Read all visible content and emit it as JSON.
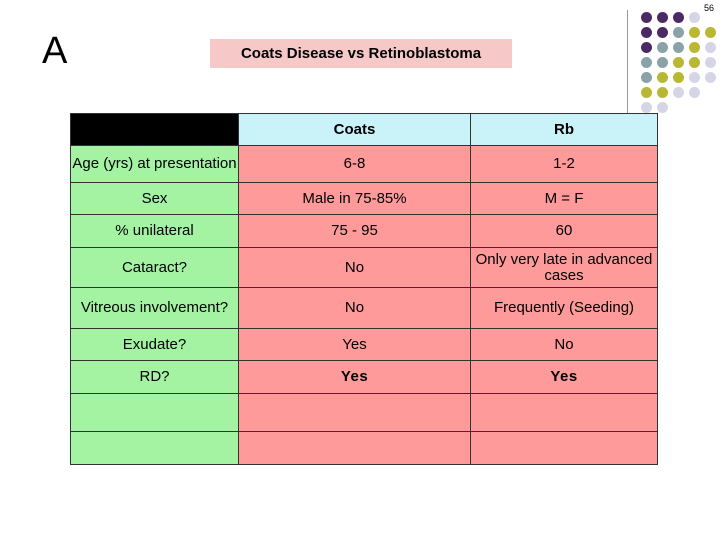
{
  "page_number": "56",
  "section_letter": "A",
  "title": "Coats Disease vs Retinoblastoma",
  "colors": {
    "title_bg": "#f6c8c8",
    "header_bg": "#c9f3f8",
    "label_bg": "#a3f3a3",
    "value_bg": "#ff9a9a",
    "dot_purple": "#4a2a66",
    "dot_olive": "#b8b832",
    "dot_grey": "#8aa3a8",
    "dot_lavender": "#d5d5e6"
  },
  "table": {
    "headers": [
      "",
      "Coats",
      "Rb"
    ],
    "rows": [
      {
        "label": "Age (yrs) at presentation",
        "coats": "6-8",
        "rb": "1-2"
      },
      {
        "label": "Sex",
        "coats": "Male in 75-85%",
        "rb": "M = F"
      },
      {
        "label": "% unilateral",
        "coats": "75 - 95",
        "rb": "60"
      },
      {
        "label": "Cataract?",
        "coats": "No",
        "rb": "Only very late in advanced cases"
      },
      {
        "label": "Vitreous involvement?",
        "coats": "No",
        "rb": "Frequently (Seeding)"
      },
      {
        "label": "Exudate?",
        "coats": "Yes",
        "rb": "No"
      },
      {
        "label": "RD?",
        "coats": "Yes",
        "rb": "Yes"
      },
      {
        "label": "",
        "coats": "",
        "rb": ""
      },
      {
        "label": "",
        "coats": "",
        "rb": ""
      }
    ]
  }
}
